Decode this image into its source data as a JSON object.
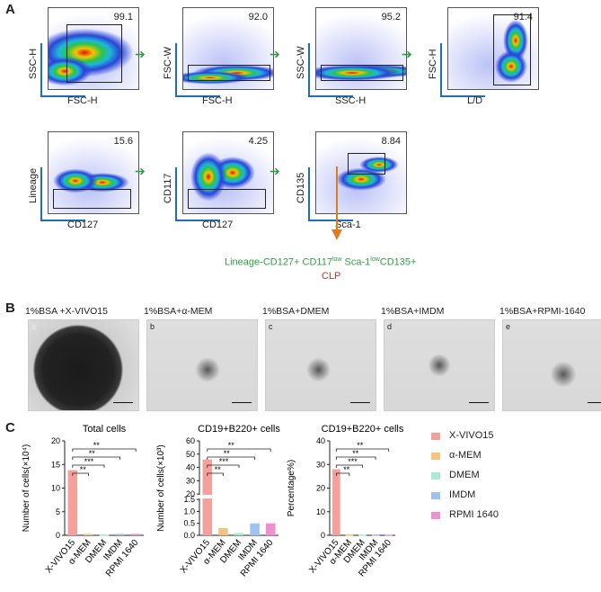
{
  "panel_a": {
    "letter": "A",
    "plots": [
      {
        "xlabel": "FSC-H",
        "ylabel": "SSC-H",
        "value": "99.1"
      },
      {
        "xlabel": "FSC-H",
        "ylabel": "FSC-W",
        "value": "92.0"
      },
      {
        "xlabel": "SSC-H",
        "ylabel": "SSC-W",
        "value": "95.2"
      },
      {
        "xlabel": "L/D",
        "ylabel": "FSC-H",
        "value": "91.4"
      },
      {
        "xlabel": "CD127",
        "ylabel": "Lineage",
        "value": "15.6"
      },
      {
        "xlabel": "CD127",
        "ylabel": "CD117",
        "value": "4.25"
      },
      {
        "xlabel": "Sca-1",
        "ylabel": "CD135",
        "value": "8.84"
      }
    ],
    "phenotype_parts": [
      "Lineage-CD127+ CD117",
      "low",
      " Sca-1",
      "low",
      "CD135+"
    ],
    "clp_label": "CLP"
  },
  "panel_b": {
    "letter": "B",
    "images": [
      {
        "letter": "a",
        "title": "1%BSA +X-VIVO15"
      },
      {
        "letter": "b",
        "title": "1%BSA+α-MEM"
      },
      {
        "letter": "c",
        "title": "1%BSA+DMEM"
      },
      {
        "letter": "d",
        "title": "1%BSA+IMDM"
      },
      {
        "letter": "e",
        "title": "1%BSA+RPMI-1640"
      }
    ]
  },
  "panel_c": {
    "letter": "C",
    "legend": [
      {
        "label": "X-VIVO15",
        "color": "#f4a09c"
      },
      {
        "label": "α-MEM",
        "color": "#f7c27e"
      },
      {
        "label": "DMEM",
        "color": "#a7ecd6"
      },
      {
        "label": "IMDM",
        "color": "#9ec2f2"
      },
      {
        "label": "RPMI 1640",
        "color": "#ee8fd0"
      }
    ]
  },
  "chart_data": [
    {
      "type": "bar",
      "title": "Total cells",
      "ylabel": "Number of cells(×10⁴)",
      "categories": [
        "X-VIVO15",
        "α-MEM",
        "DMEM",
        "IMDM",
        "RPMI 1640"
      ],
      "values": [
        13.8,
        0.3,
        0.2,
        0.3,
        0.3
      ],
      "ylim": [
        0,
        20
      ],
      "yticks": [
        "0",
        "5",
        "10",
        "15",
        "20"
      ],
      "significance": [
        "**",
        "***",
        "**",
        "**"
      ]
    },
    {
      "type": "bar",
      "title": "CD19+B220+ cells",
      "ylabel": "Number of cells(×10³)",
      "categories": [
        "X-VIVO15",
        "α-MEM",
        "DMEM",
        "IMDM",
        "RPMI 1640"
      ],
      "values": [
        46,
        0.3,
        0.1,
        0.5,
        0.5
      ],
      "broken_axis": true,
      "yticks": [
        "0.0",
        "0.5",
        "1.0",
        "1.5",
        "20",
        "30",
        "40",
        "50",
        "60"
      ],
      "significance": [
        "**",
        "***",
        "**",
        "**"
      ]
    },
    {
      "type": "bar",
      "title": "CD19+B220+ cells",
      "ylabel": "Percentage%)",
      "categories": [
        "X-VIVO15",
        "α-MEM",
        "DMEM",
        "IMDM",
        "RPMI 1640"
      ],
      "values": [
        28,
        0.4,
        0.3,
        0.4,
        0.3
      ],
      "ylim": [
        0,
        40
      ],
      "yticks": [
        "0",
        "10",
        "20",
        "30",
        "40"
      ],
      "significance": [
        "**",
        "***",
        "**",
        "**"
      ]
    }
  ]
}
